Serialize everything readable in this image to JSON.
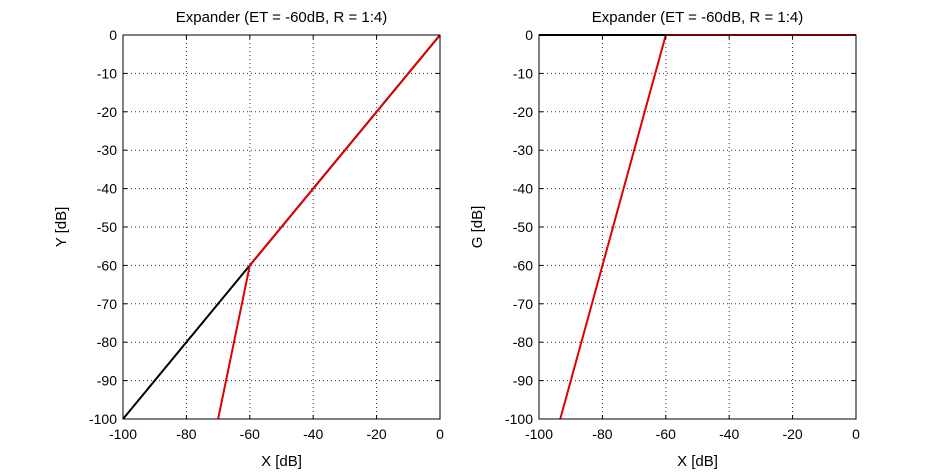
{
  "chart_data": [
    {
      "type": "line",
      "title": "Expander (ET = -60dB, R = 1:4)",
      "xlabel": "X [dB]",
      "ylabel": "Y [dB]",
      "xlim": [
        -100,
        0
      ],
      "ylim": [
        -100,
        0
      ],
      "xticks": [
        -100,
        -80,
        -60,
        -40,
        -20,
        0
      ],
      "yticks": [
        0,
        -10,
        -20,
        -30,
        -40,
        -50,
        -60,
        -70,
        -80,
        -90,
        -100
      ],
      "xtick_labels": [
        "-100",
        "-80",
        "-60",
        "-40",
        "-20",
        "0"
      ],
      "ytick_labels": [
        "0",
        "-10",
        "-20",
        "-30",
        "-40",
        "-50",
        "-60",
        "-70",
        "-80",
        "-90",
        "-100"
      ],
      "grid": true,
      "series": [
        {
          "color": "#000000",
          "x": [
            -100,
            0
          ],
          "y": [
            -100,
            0
          ]
        },
        {
          "color": "#e00000",
          "x": [
            -70,
            -60,
            0
          ],
          "y": [
            -100,
            -60,
            0
          ]
        }
      ]
    },
    {
      "type": "line",
      "title": "Expander (ET = -60dB, R = 1:4)",
      "xlabel": "X [dB]",
      "ylabel": "G [dB]",
      "xlim": [
        -100,
        0
      ],
      "ylim": [
        -100,
        0
      ],
      "xticks": [
        -100,
        -80,
        -60,
        -40,
        -20,
        0
      ],
      "yticks": [
        0,
        -10,
        -20,
        -30,
        -40,
        -50,
        -60,
        -70,
        -80,
        -90,
        -100
      ],
      "xtick_labels": [
        "-100",
        "-80",
        "-60",
        "-40",
        "-20",
        "0"
      ],
      "ytick_labels": [
        "0",
        "-10",
        "-20",
        "-30",
        "-40",
        "-50",
        "-60",
        "-70",
        "-80",
        "-90",
        "-100"
      ],
      "grid": true,
      "series": [
        {
          "color": "#000000",
          "x": [
            -100,
            0
          ],
          "y": [
            0,
            0
          ]
        },
        {
          "color": "#e00000",
          "x": [
            -93.3,
            -60,
            0
          ],
          "y": [
            -100,
            0,
            0
          ]
        }
      ]
    }
  ]
}
